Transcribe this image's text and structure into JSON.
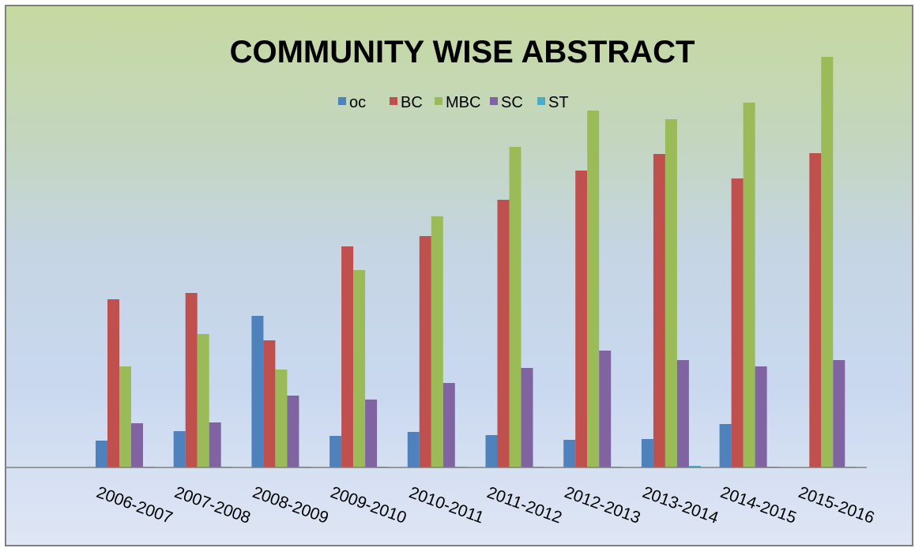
{
  "chart_data": {
    "type": "bar",
    "title": "COMMUNITY WISE ABSTRACT",
    "xlabel": "",
    "ylabel": "",
    "categories": [
      "2006-2007",
      "2007-2008",
      "2008-2009",
      "2009-2010",
      "2010-2011",
      "2011-2012",
      "2012-2013",
      "2013-2014",
      "2014-2015",
      "2015-2016"
    ],
    "series": [
      {
        "name": "oc",
        "color": "#4f81bd",
        "values": [
          34,
          46,
          192,
          40,
          45,
          41,
          35,
          36,
          55,
          0
        ]
      },
      {
        "name": "BC",
        "color": "#c0504d",
        "values": [
          213,
          221,
          161,
          280,
          293,
          339,
          376,
          397,
          366,
          398
        ]
      },
      {
        "name": "MBC",
        "color": "#9bbb59",
        "values": [
          128,
          169,
          124,
          250,
          318,
          406,
          452,
          441,
          462,
          520
        ]
      },
      {
        "name": "SC",
        "color": "#8064a2",
        "values": [
          56,
          57,
          91,
          86,
          107,
          126,
          148,
          136,
          128,
          136
        ]
      },
      {
        "name": "ST",
        "color": "#4bacc6",
        "values": [
          1,
          1,
          1,
          1,
          1,
          1,
          1,
          2,
          1,
          1
        ]
      }
    ],
    "ylim": [
      0,
      520
    ],
    "grid": false,
    "legend": "top-center"
  }
}
